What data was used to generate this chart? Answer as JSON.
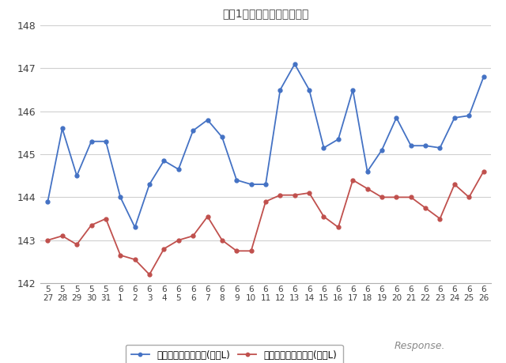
{
  "title": "最近1ヶ月のレギュラー価格",
  "x_labels_row1": [
    "5",
    "5",
    "5",
    "5",
    "5",
    "6",
    "6",
    "6",
    "6",
    "6",
    "6",
    "6",
    "6",
    "6",
    "6",
    "6",
    "6",
    "6",
    "6",
    "6",
    "6",
    "6",
    "6",
    "6",
    "6",
    "6",
    "6",
    "6",
    "6",
    "6",
    "6"
  ],
  "x_labels_row2": [
    "27",
    "28",
    "29",
    "30",
    "31",
    "1",
    "2",
    "3",
    "4",
    "5",
    "6",
    "7",
    "8",
    "9",
    "10",
    "11",
    "12",
    "13",
    "14",
    "15",
    "16",
    "17",
    "18",
    "19",
    "20",
    "21",
    "22",
    "23",
    "24",
    "25",
    "26"
  ],
  "blue_data": [
    143.9,
    145.6,
    144.5,
    145.3,
    145.3,
    144.0,
    143.3,
    144.3,
    144.85,
    144.65,
    145.55,
    145.8,
    145.4,
    144.4,
    144.3,
    144.3,
    146.5,
    147.1,
    146.5,
    145.15,
    145.35,
    146.5,
    144.6,
    145.1,
    145.85,
    145.2,
    145.2,
    145.15,
    145.85,
    145.9,
    146.8
  ],
  "red_data": [
    143.0,
    143.1,
    142.9,
    143.35,
    143.5,
    142.65,
    142.55,
    142.2,
    142.8,
    143.0,
    143.1,
    143.55,
    143.0,
    142.75,
    142.75,
    143.9,
    144.05,
    144.05,
    144.1,
    143.55,
    143.3,
    144.4,
    144.2,
    144.0,
    144.0,
    144.0,
    143.75,
    143.5,
    144.3,
    144.0,
    144.6
  ],
  "ylim": [
    142,
    148
  ],
  "yticks": [
    142,
    143,
    144,
    145,
    146,
    147,
    148
  ],
  "blue_color": "#4472C4",
  "red_color": "#C0504D",
  "legend_blue": "レギュラー看板価格(円／L)",
  "legend_red": "レギュラー実売価格(円／L)",
  "bg_color": "#FFFFFF",
  "grid_color": "#D0D0D0",
  "title_color": "#404040"
}
